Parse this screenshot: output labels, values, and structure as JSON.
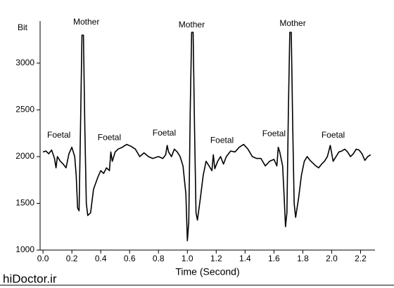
{
  "chart_data": {
    "type": "line",
    "xlabel": "Time (Second)",
    "ylabel": "Bit",
    "color": "#000000",
    "xlim": [
      -0.02,
      2.3
    ],
    "ylim": [
      1000,
      3450
    ],
    "xticks": [
      {
        "value": 0,
        "label": "0.0"
      },
      0.2,
      0.4,
      0.6,
      0.8,
      {
        "value": 1,
        "label": "1.0"
      },
      1.2,
      1.4,
      1.6,
      1.8,
      {
        "value": 2,
        "label": "2.0"
      },
      2.2
    ],
    "yticks": [
      1000,
      1500,
      2000,
      2500,
      3000
    ],
    "annotations": [
      {
        "text": "Mother",
        "x": 0.3,
        "y": 3435
      },
      {
        "text": "Mother",
        "x": 1.03,
        "y": 3405
      },
      {
        "text": "Mother",
        "x": 1.73,
        "y": 3420
      },
      {
        "text": "Foetal",
        "x": 0.11,
        "y": 2225
      },
      {
        "text": "Foetal",
        "x": 0.46,
        "y": 2200
      },
      {
        "text": "Foetal",
        "x": 0.84,
        "y": 2250
      },
      {
        "text": "Foetal",
        "x": 1.24,
        "y": 2170
      },
      {
        "text": "Foetal",
        "x": 1.6,
        "y": 2240
      },
      {
        "text": "Foetal",
        "x": 2.01,
        "y": 2225
      }
    ],
    "watermark": "hiDoctor.ir",
    "x": [
      0.0,
      0.02,
      0.04,
      0.06,
      0.08,
      0.09,
      0.1,
      0.12,
      0.14,
      0.16,
      0.18,
      0.2,
      0.22,
      0.23,
      0.24,
      0.25,
      0.26,
      0.27,
      0.28,
      0.29,
      0.3,
      0.31,
      0.33,
      0.35,
      0.38,
      0.4,
      0.42,
      0.44,
      0.46,
      0.47,
      0.48,
      0.5,
      0.52,
      0.55,
      0.58,
      0.61,
      0.64,
      0.67,
      0.7,
      0.73,
      0.76,
      0.8,
      0.83,
      0.85,
      0.86,
      0.87,
      0.89,
      0.91,
      0.93,
      0.95,
      0.97,
      0.99,
      1.0,
      1.01,
      1.02,
      1.03,
      1.04,
      1.05,
      1.06,
      1.07,
      1.09,
      1.11,
      1.13,
      1.15,
      1.17,
      1.18,
      1.19,
      1.21,
      1.23,
      1.25,
      1.27,
      1.3,
      1.33,
      1.36,
      1.39,
      1.42,
      1.45,
      1.48,
      1.51,
      1.54,
      1.57,
      1.6,
      1.62,
      1.63,
      1.64,
      1.66,
      1.67,
      1.68,
      1.69,
      1.7,
      1.71,
      1.72,
      1.73,
      1.74,
      1.75,
      1.77,
      1.79,
      1.81,
      1.83,
      1.85,
      1.87,
      1.89,
      1.91,
      1.93,
      1.95,
      1.97,
      1.99,
      2.01,
      2.03,
      2.05,
      2.07,
      2.09,
      2.11,
      2.13,
      2.15,
      2.17,
      2.19,
      2.21,
      2.23,
      2.25,
      2.27
    ],
    "values": [
      2050,
      2060,
      2030,
      2070,
      1980,
      1880,
      2000,
      1950,
      1920,
      1880,
      2030,
      2100,
      2000,
      1800,
      1450,
      1420,
      2300,
      3300,
      3300,
      2300,
      1500,
      1370,
      1400,
      1650,
      1780,
      1850,
      1820,
      1880,
      1850,
      2050,
      1950,
      2050,
      2080,
      2100,
      2130,
      2110,
      2080,
      2000,
      2040,
      2000,
      1980,
      2000,
      1980,
      2020,
      2120,
      2050,
      2000,
      2080,
      2050,
      2000,
      1900,
      1600,
      1100,
      1300,
      2500,
      3330,
      3330,
      2300,
      1400,
      1320,
      1550,
      1800,
      1950,
      1900,
      1850,
      2020,
      1870,
      1950,
      2000,
      1920,
      2000,
      2060,
      2050,
      2100,
      2130,
      2080,
      2000,
      1980,
      1980,
      1900,
      1950,
      1970,
      1900,
      2100,
      2050,
      1900,
      1600,
      1250,
      1400,
      2500,
      3330,
      3330,
      2300,
      1500,
      1350,
      1550,
      1800,
      1950,
      2000,
      1960,
      1930,
      1900,
      1880,
      1920,
      1950,
      2000,
      2120,
      1950,
      2000,
      2050,
      2060,
      2080,
      2050,
      2000,
      2030,
      2080,
      2070,
      2030,
      1960,
      2000,
      2020
    ]
  }
}
